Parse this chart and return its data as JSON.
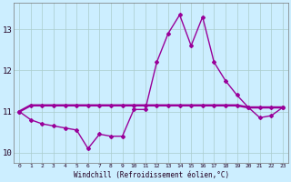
{
  "xlabel": "Windchill (Refroidissement éolien,°C)",
  "hours": [
    0,
    1,
    2,
    3,
    4,
    5,
    6,
    7,
    8,
    9,
    10,
    11,
    12,
    13,
    14,
    15,
    16,
    17,
    18,
    19,
    20,
    21,
    22,
    23
  ],
  "temp": [
    11.0,
    11.15,
    11.15,
    11.15,
    11.15,
    11.15,
    11.15,
    11.15,
    11.15,
    11.15,
    11.15,
    11.15,
    11.15,
    11.15,
    11.15,
    11.15,
    11.15,
    11.15,
    11.15,
    11.15,
    11.1,
    11.1,
    11.1,
    11.1
  ],
  "windchill": [
    11.0,
    10.8,
    10.7,
    10.65,
    10.6,
    10.55,
    10.1,
    10.45,
    10.4,
    10.4,
    11.05,
    11.05,
    12.2,
    12.9,
    13.35,
    12.6,
    13.3,
    12.2,
    11.75,
    11.4,
    11.1,
    10.85,
    10.9,
    11.1
  ],
  "line_color": "#990099",
  "bg_color": "#cceeff",
  "grid_color": "#aacccc",
  "ylim": [
    9.75,
    13.65
  ],
  "yticks": [
    10,
    11,
    12,
    13
  ],
  "xticks": [
    0,
    1,
    2,
    3,
    4,
    5,
    6,
    7,
    8,
    9,
    10,
    11,
    12,
    13,
    14,
    15,
    16,
    17,
    18,
    19,
    20,
    21,
    22,
    23
  ],
  "xlabels": [
    "0",
    "1",
    "2",
    "3",
    "4",
    "5",
    "6",
    "7",
    "8",
    "9",
    "10",
    "11",
    "12",
    "13",
    "14",
    "15",
    "16",
    "17",
    "18",
    "19",
    "20",
    "21",
    "22",
    "23"
  ]
}
